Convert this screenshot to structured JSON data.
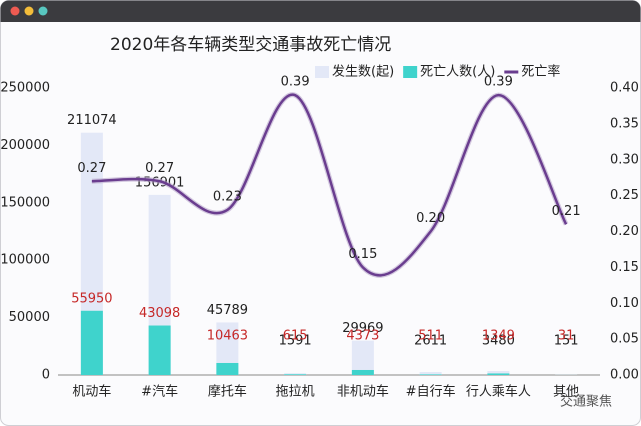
{
  "chart_data": {
    "type": "bar_line",
    "title": "2020年各车辆类型交通事故死亡情况",
    "categories": [
      "机动车",
      "#汽车",
      "摩托车",
      "拖拉机",
      "非机动车",
      "#自行车",
      "行人乘车人",
      "其他"
    ],
    "series": [
      {
        "name": "发生数(起)",
        "type": "bar",
        "color": "#e3e8f7",
        "label_color": "#222222",
        "values": [
          211074,
          156901,
          45789,
          1591,
          29969,
          2611,
          3480,
          151
        ]
      },
      {
        "name": "死亡人数(人)",
        "type": "bar",
        "color": "#3fd3cc",
        "label_color": "#c62828",
        "values": [
          55950,
          43098,
          10463,
          615,
          4373,
          511,
          1349,
          31
        ]
      },
      {
        "name": "死亡率",
        "type": "line",
        "axis": "y2",
        "color": "#6a3d8f",
        "label_color": "#222222",
        "values": [
          0.27,
          0.27,
          0.23,
          0.39,
          0.15,
          0.2,
          0.39,
          0.21
        ],
        "value_labels": [
          "0.27",
          "0.27",
          "0.23",
          "0.39",
          "0.15",
          "0.20",
          "0.39",
          "0.21"
        ]
      }
    ],
    "ylim": [
      0,
      250000
    ],
    "yticks": [
      0,
      50000,
      100000,
      150000,
      200000,
      250000
    ],
    "y2lim": [
      0,
      0.4
    ],
    "y2ticks": [
      {
        "value": 0,
        "label": "0.00"
      },
      {
        "value": 0.05,
        "label": "0.05"
      },
      {
        "value": 0.1,
        "label": "0.10"
      },
      {
        "value": 0.15,
        "label": "0.15"
      },
      {
        "value": 0.2,
        "label": "0.20"
      },
      {
        "value": 0.25,
        "label": "0.25"
      },
      {
        "value": 0.3,
        "label": "0.30"
      },
      {
        "value": 0.35,
        "label": "0.35"
      },
      {
        "value": 0.4,
        "label": "0.40"
      }
    ],
    "watermark": "交通聚焦"
  }
}
